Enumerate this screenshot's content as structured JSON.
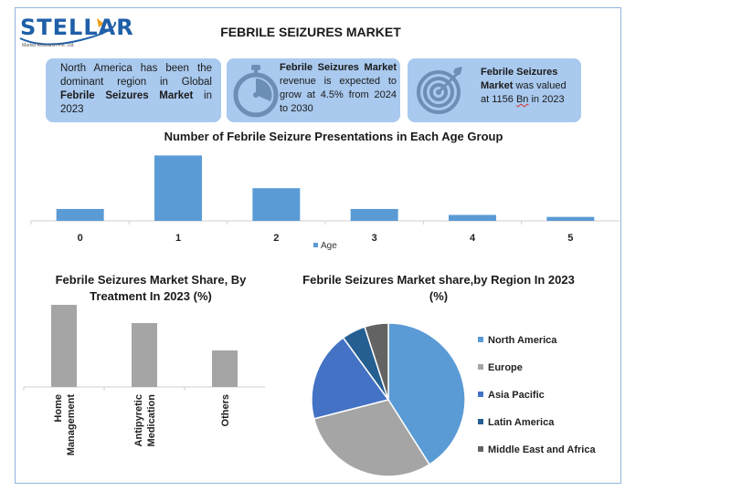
{
  "header": {
    "logo_text": "STELLAR",
    "logo_subtext": "Market Research Pvt. Ltd.",
    "title": "FEBRILE SEIZURES MARKET"
  },
  "info_boxes": {
    "box1": {
      "text_before": "North America has been the dominant region in Global ",
      "bold": "Febrile Seizures Market",
      "text_after": " in 2023",
      "icon": "none"
    },
    "box2": {
      "bold": "Febrile Seizures Market",
      "text_after": " revenue is expected to grow at 4.5% from 2024 to 2030",
      "icon": "stopwatch-icon"
    },
    "box3": {
      "bold": "Febrile Seizures Market",
      "text_middle": " was valued at 1156 ",
      "unit": "Bn",
      "text_after": " in 2023",
      "icon": "target-icon"
    }
  },
  "colors": {
    "bar_blue": "#5b9bd5",
    "bar_gray": "#a5a5a5",
    "box_bg": "#a9c9ee",
    "na": "#5b9bd5",
    "europe": "#a5a5a5",
    "apac": "#4472c4",
    "latam": "#255e91",
    "mea": "#636363"
  },
  "chart_data": [
    {
      "type": "bar",
      "title": "Number of Febrile Seizure Presentations in Each Age Group",
      "categories": [
        "0",
        "1",
        "2",
        "3",
        "4",
        "5"
      ],
      "series": [
        {
          "name": "Age",
          "values": [
            12,
            66,
            33,
            12,
            6,
            4
          ]
        }
      ],
      "ylim": [
        0,
        70
      ],
      "grid": false,
      "legend": "bottom"
    },
    {
      "type": "bar",
      "title": "Febrile Seizures Market Share, By Treatment In 2023 (%)",
      "categories": [
        "Home Management",
        "Antipyretic Medication",
        "Others"
      ],
      "values": [
        45,
        35,
        20
      ],
      "ylim": [
        0,
        47
      ],
      "grid": false,
      "legend": "none"
    },
    {
      "type": "pie",
      "title": "Febrile Seizures Market share,by Region In 2023 (%)",
      "labels": [
        "North America",
        "Europe",
        "Asia Pacific",
        "Latin America",
        "Middle East and Africa"
      ],
      "values": [
        41,
        30,
        19,
        5,
        5
      ],
      "legend": "right"
    }
  ]
}
